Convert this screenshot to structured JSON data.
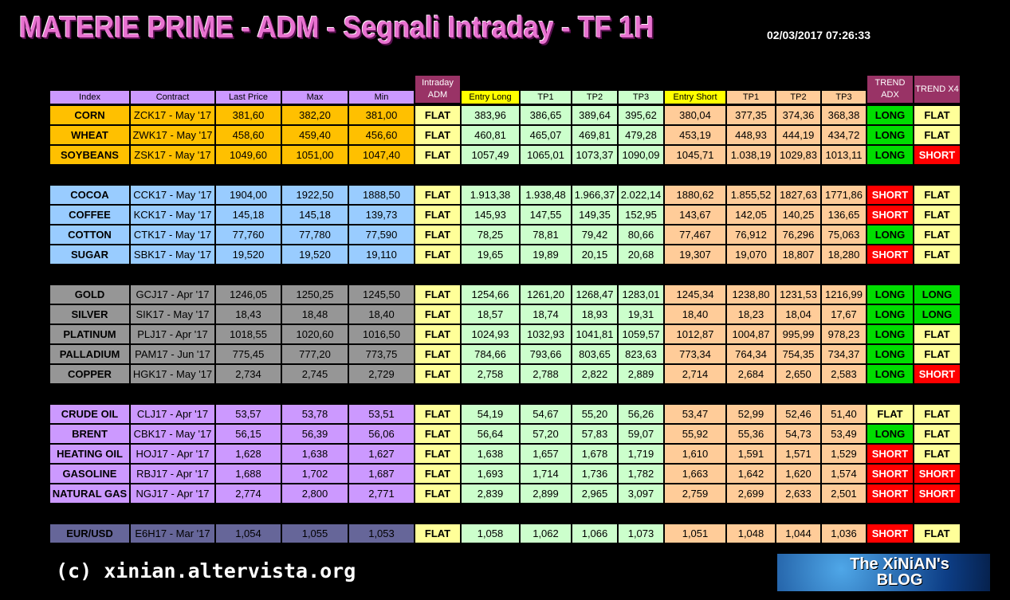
{
  "header": {
    "title": "MATERIE PRIME - ADM - Segnali Intraday - TF 1H",
    "timestamp": "02/03/2017 07:26:33"
  },
  "table": {
    "columns": [
      "Index",
      "Contract",
      "Last Price",
      "Max",
      "Min",
      "Intraday ADM",
      "Entry Long",
      "TP1",
      "TP2",
      "TP3",
      "Entry Short",
      "TP1",
      "TP2",
      "TP3",
      "TREND ADX",
      "TREND X4"
    ],
    "signal_colors": {
      "FLAT": {
        "fill": "#ffff99",
        "text": "#000000"
      },
      "LONG": {
        "fill": "#00dd00",
        "text": "#000000"
      },
      "SHORT": {
        "fill": "#ff0000",
        "text": "#ffffff"
      }
    },
    "groups": [
      {
        "color": "#ffc000",
        "rows": [
          [
            "CORN",
            "ZCK17 - May '17",
            "381,60",
            "382,20",
            "381,00",
            "FLAT",
            "383,96",
            "386,65",
            "389,64",
            "395,62",
            "380,04",
            "377,35",
            "374,36",
            "368,38",
            "LONG",
            "FLAT"
          ],
          [
            "WHEAT",
            "ZWK17 - May '17",
            "458,60",
            "459,40",
            "456,60",
            "FLAT",
            "460,81",
            "465,07",
            "469,81",
            "479,28",
            "453,19",
            "448,93",
            "444,19",
            "434,72",
            "LONG",
            "FLAT"
          ],
          [
            "SOYBEANS",
            "ZSK17 - May '17",
            "1049,60",
            "1051,00",
            "1047,40",
            "FLAT",
            "1057,49",
            "1065,01",
            "1073,37",
            "1090,09",
            "1045,71",
            "1.038,19",
            "1029,83",
            "1013,11",
            "LONG",
            "SHORT"
          ]
        ]
      },
      {
        "color": "#99ccff",
        "rows": [
          [
            "COCOA",
            "CCK17 - May '17",
            "1904,00",
            "1922,50",
            "1888,50",
            "FLAT",
            "1.913,38",
            "1.938,48",
            "1.966,37",
            "2.022,14",
            "1880,62",
            "1.855,52",
            "1827,63",
            "1771,86",
            "SHORT",
            "FLAT"
          ],
          [
            "COFFEE",
            "KCK17 - May '17",
            "145,18",
            "145,18",
            "139,73",
            "FLAT",
            "145,93",
            "147,55",
            "149,35",
            "152,95",
            "143,67",
            "142,05",
            "140,25",
            "136,65",
            "SHORT",
            "FLAT"
          ],
          [
            "COTTON",
            "CTK17 - May '17",
            "77,760",
            "77,780",
            "77,590",
            "FLAT",
            "78,25",
            "78,81",
            "79,42",
            "80,66",
            "77,467",
            "76,912",
            "76,296",
            "75,063",
            "LONG",
            "FLAT"
          ],
          [
            "SUGAR",
            "SBK17 - May '17",
            "19,520",
            "19,520",
            "19,110",
            "FLAT",
            "19,65",
            "19,89",
            "20,15",
            "20,68",
            "19,307",
            "19,070",
            "18,807",
            "18,280",
            "SHORT",
            "FLAT"
          ]
        ]
      },
      {
        "color": "#969696",
        "rows": [
          [
            "GOLD",
            "GCJ17 - Apr '17",
            "1246,05",
            "1250,25",
            "1245,50",
            "FLAT",
            "1254,66",
            "1261,20",
            "1268,47",
            "1283,01",
            "1245,34",
            "1238,80",
            "1231,53",
            "1216,99",
            "LONG",
            "LONG"
          ],
          [
            "SILVER",
            "SIK17 - May '17",
            "18,43",
            "18,48",
            "18,40",
            "FLAT",
            "18,57",
            "18,74",
            "18,93",
            "19,31",
            "18,40",
            "18,23",
            "18,04",
            "17,67",
            "LONG",
            "LONG"
          ],
          [
            "PLATINUM",
            "PLJ17 - Apr '17",
            "1018,55",
            "1020,60",
            "1016,50",
            "FLAT",
            "1024,93",
            "1032,93",
            "1041,81",
            "1059,57",
            "1012,87",
            "1004,87",
            "995,99",
            "978,23",
            "LONG",
            "FLAT"
          ],
          [
            "PALLADIUM",
            "PAM17 - Jun '17",
            "775,45",
            "777,20",
            "773,75",
            "FLAT",
            "784,66",
            "793,66",
            "803,65",
            "823,63",
            "773,34",
            "764,34",
            "754,35",
            "734,37",
            "LONG",
            "FLAT"
          ],
          [
            "COPPER",
            "HGK17 - May '17",
            "2,734",
            "2,745",
            "2,729",
            "FLAT",
            "2,758",
            "2,788",
            "2,822",
            "2,889",
            "2,714",
            "2,684",
            "2,650",
            "2,583",
            "LONG",
            "SHORT"
          ]
        ]
      },
      {
        "color": "#cc99ff",
        "rows": [
          [
            "CRUDE OIL",
            "CLJ17 - Apr '17",
            "53,57",
            "53,78",
            "53,51",
            "FLAT",
            "54,19",
            "54,67",
            "55,20",
            "56,26",
            "53,47",
            "52,99",
            "52,46",
            "51,40",
            "FLAT",
            "FLAT"
          ],
          [
            "BRENT",
            "CBK17 - May '17",
            "56,15",
            "56,39",
            "56,06",
            "FLAT",
            "56,64",
            "57,20",
            "57,83",
            "59,07",
            "55,92",
            "55,36",
            "54,73",
            "53,49",
            "LONG",
            "FLAT"
          ],
          [
            "HEATING OIL",
            "HOJ17 - Apr '17",
            "1,628",
            "1,638",
            "1,627",
            "FLAT",
            "1,638",
            "1,657",
            "1,678",
            "1,719",
            "1,610",
            "1,591",
            "1,571",
            "1,529",
            "SHORT",
            "FLAT"
          ],
          [
            "GASOLINE",
            "RBJ17 - Apr '17",
            "1,688",
            "1,702",
            "1,687",
            "FLAT",
            "1,693",
            "1,714",
            "1,736",
            "1,782",
            "1,663",
            "1,642",
            "1,620",
            "1,574",
            "SHORT",
            "SHORT"
          ],
          [
            "NATURAL GAS",
            "NGJ17 - Apr '17",
            "2,774",
            "2,800",
            "2,771",
            "FLAT",
            "2,839",
            "2,899",
            "2,965",
            "3,097",
            "2,759",
            "2,699",
            "2,633",
            "2,501",
            "SHORT",
            "SHORT"
          ]
        ]
      },
      {
        "color": "#666699",
        "rows": [
          [
            "EUR/USD",
            "E6H17 - Mar '17",
            "1,054",
            "1,055",
            "1,053",
            "FLAT",
            "1,058",
            "1,062",
            "1,066",
            "1,073",
            "1,051",
            "1,048",
            "1,044",
            "1,036",
            "SHORT",
            "FLAT"
          ]
        ]
      }
    ]
  },
  "footer": {
    "copyright": "(c) xinian.altervista.org",
    "logo": [
      "The XiNiAN's",
      "BLOG"
    ]
  }
}
